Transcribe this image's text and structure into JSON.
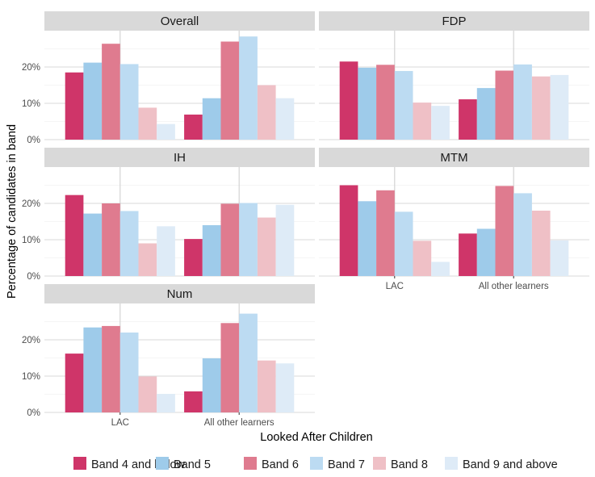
{
  "chart_data": {
    "type": "bar",
    "xlabel": "Looked After Children",
    "ylabel": "Percentage of candidates in band",
    "categories": [
      "LAC",
      "All other learners"
    ],
    "y_ticks": [
      "0%",
      "10%",
      "20%"
    ],
    "ylim": [
      0,
      30
    ],
    "grid": true,
    "legend_position": "bottom",
    "series_names": [
      "Band 4 and below",
      "Band 5",
      "Band 6",
      "Band 7",
      "Band 8",
      "Band 9 and above"
    ],
    "colors": [
      "#cf3569",
      "#9ecbea",
      "#df7b8f",
      "#bcdbf2",
      "#efc0c6",
      "#deebf7"
    ],
    "panels": [
      {
        "title": "Overall",
        "values": [
          [
            18.5,
            21.2,
            26.4,
            20.8,
            8.8,
            4.3
          ],
          [
            6.9,
            11.4,
            27.0,
            28.4,
            15.0,
            11.4
          ]
        ]
      },
      {
        "title": "FDP",
        "values": [
          [
            21.5,
            19.8,
            20.6,
            18.9,
            10.2,
            9.3
          ],
          [
            11.1,
            14.2,
            19.0,
            20.7,
            17.4,
            17.8
          ]
        ]
      },
      {
        "title": "IH",
        "values": [
          [
            22.3,
            17.2,
            20.0,
            17.9,
            9.0,
            13.7
          ],
          [
            10.2,
            14.0,
            19.9,
            20.1,
            16.1,
            19.6
          ]
        ]
      },
      {
        "title": "MTM",
        "values": [
          [
            25.0,
            20.6,
            23.6,
            17.7,
            9.7,
            3.9
          ],
          [
            11.7,
            13.0,
            24.8,
            22.8,
            18.0,
            9.8
          ]
        ]
      },
      {
        "title": "Num",
        "values": [
          [
            16.2,
            23.4,
            23.8,
            22.0,
            9.9,
            5.1
          ],
          [
            5.8,
            14.9,
            24.6,
            27.2,
            14.3,
            13.5
          ]
        ]
      }
    ]
  }
}
